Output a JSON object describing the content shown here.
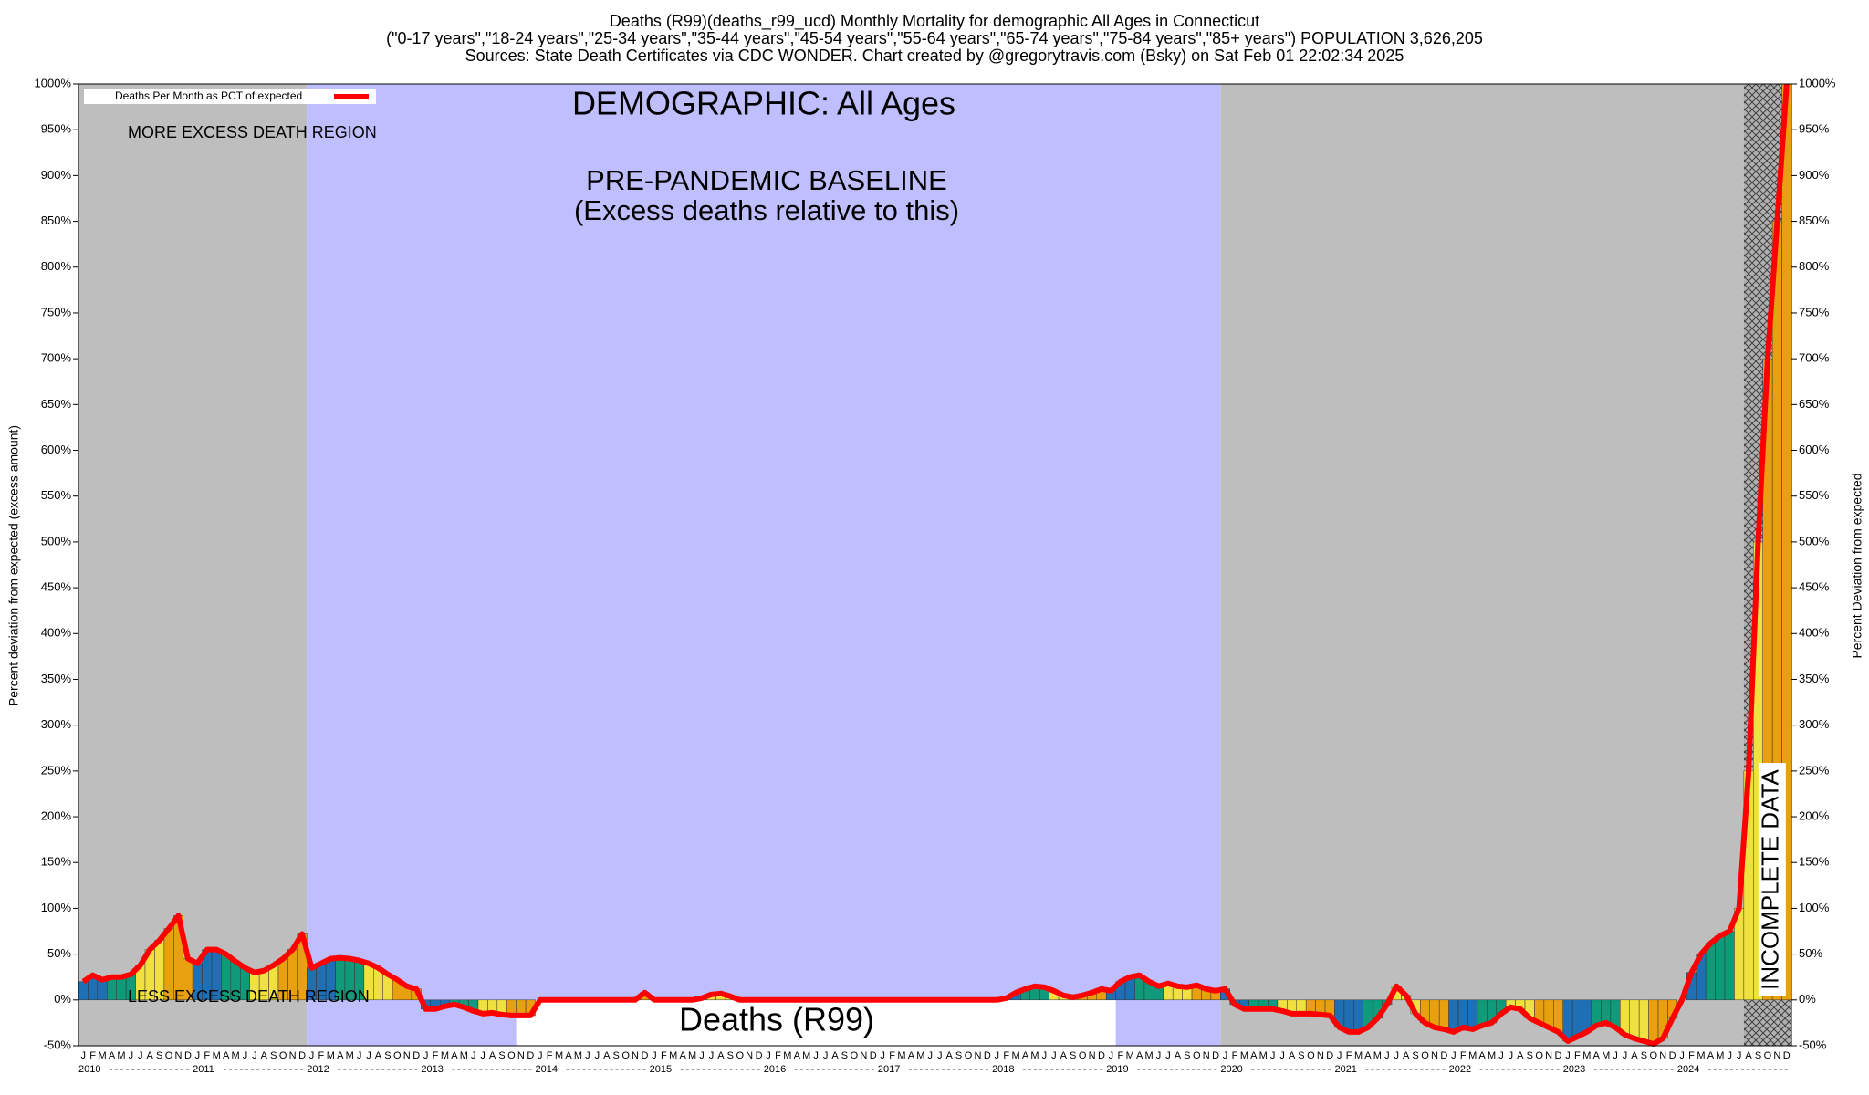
{
  "chart_data": {
    "type": "bar",
    "title_lines": [
      "Deaths (R99)(deaths_r99_ucd) Monthly Mortality for demographic All Ages in Connecticut",
      "(\"0-17 years\",\"18-24 years\",\"25-34 years\",\"35-44 years\",\"45-54 years\",\"55-64 years\",\"65-74 years\",\"75-84 years\",\"85+ years\") POPULATION 3,626,205",
      "Sources: State Death Certificates via CDC WONDER.               Chart created by @gregorytravis.com (Bsky) on Sat Feb 01 22:02:34 2025"
    ],
    "demographic": "DEMOGRAPHIC: All Ages",
    "baseline_label": "PRE-PANDEMIC BASELINE",
    "baseline_sublabel": "(Excess deaths relative to this)",
    "more_region_label": "MORE EXCESS DEATH REGION",
    "less_region_label": "LESS EXCESS DEATH REGION",
    "cause_label": "Deaths (R99)",
    "incomplete_label": "INCOMPLETE DATA",
    "ylabel": "Percent deviation from expected (excess amount)",
    "y2label": "Percent Deviation from expected",
    "categories": [
      "J",
      "F",
      "M",
      "A",
      "M",
      "J",
      "J",
      "A",
      "S",
      "O",
      "N",
      "D",
      "J",
      "F",
      "M",
      "A",
      "M",
      "J",
      "J",
      "A",
      "S",
      "O",
      "N",
      "D",
      "J",
      "F",
      "M",
      "A",
      "M",
      "J",
      "J",
      "A",
      "S",
      "O",
      "N",
      "D",
      "J",
      "F",
      "M",
      "A",
      "M",
      "J",
      "J",
      "A",
      "S",
      "O",
      "N",
      "D",
      "J",
      "F",
      "M",
      "A",
      "M",
      "J",
      "J",
      "A",
      "S",
      "O",
      "N",
      "D",
      "J",
      "F",
      "M",
      "A",
      "M",
      "J",
      "J",
      "A",
      "S",
      "O",
      "N",
      "D",
      "J",
      "F",
      "M",
      "A",
      "M",
      "J",
      "J",
      "A",
      "S",
      "O",
      "N",
      "D",
      "J",
      "F",
      "M",
      "A",
      "M",
      "J",
      "J",
      "A",
      "S",
      "O",
      "N",
      "D",
      "J",
      "F",
      "M",
      "A",
      "M",
      "J",
      "J",
      "A",
      "S",
      "O",
      "N",
      "D",
      "J",
      "F",
      "M",
      "A",
      "M",
      "J",
      "J",
      "A",
      "S",
      "O",
      "N",
      "D",
      "J",
      "F",
      "M",
      "A",
      "M",
      "J",
      "J",
      "A",
      "S",
      "O",
      "N",
      "D",
      "J",
      "F",
      "M",
      "A",
      "M",
      "J",
      "J",
      "A",
      "S",
      "O",
      "N",
      "D",
      "J",
      "F",
      "M",
      "A",
      "M",
      "J",
      "J",
      "A",
      "S",
      "O",
      "N",
      "D",
      "J",
      "F",
      "M",
      "A",
      "M",
      "J",
      "J",
      "A",
      "S",
      "O",
      "N",
      "D",
      "J",
      "F",
      "M",
      "A",
      "M",
      "J",
      "J",
      "A",
      "S",
      "O",
      "N",
      "D"
    ],
    "years": [
      "2010",
      "2011",
      "2012",
      "2013",
      "2014",
      "2015",
      "2016",
      "2017",
      "2018",
      "2019",
      "2020",
      "2021",
      "2022",
      "2023",
      "2024"
    ],
    "series": [
      {
        "name": "Deaths Per Month as PCT of expected",
        "color": "#ff0000",
        "values": [
          20,
          27,
          22,
          25,
          25,
          28,
          38,
          55,
          65,
          78,
          92,
          45,
          40,
          55,
          55,
          50,
          42,
          35,
          30,
          32,
          38,
          45,
          55,
          72,
          35,
          40,
          45,
          46,
          45,
          43,
          40,
          35,
          28,
          22,
          15,
          12,
          -10,
          -10,
          -7,
          -5,
          -8,
          -12,
          -15,
          -14,
          -16,
          -17,
          -17,
          -17,
          0,
          0,
          0,
          0,
          0,
          0,
          0,
          0,
          0,
          0,
          0,
          8,
          0,
          0,
          0,
          0,
          0,
          2,
          6,
          7,
          4,
          0,
          0,
          0,
          0,
          0,
          0,
          0,
          0,
          0,
          0,
          0,
          0,
          0,
          0,
          0,
          0,
          0,
          0,
          0,
          0,
          0,
          0,
          0,
          0,
          0,
          0,
          0,
          0,
          2,
          8,
          12,
          15,
          14,
          10,
          5,
          3,
          5,
          8,
          12,
          10,
          20,
          25,
          27,
          20,
          15,
          18,
          15,
          14,
          16,
          12,
          10,
          12,
          -5,
          -10,
          -10,
          -10,
          -10,
          -12,
          -15,
          -15,
          -15,
          -16,
          -17,
          -30,
          -35,
          -35,
          -30,
          -20,
          -5,
          15,
          5,
          -15,
          -25,
          -30,
          -32,
          -35,
          -30,
          -32,
          -28,
          -25,
          -15,
          -8,
          -10,
          -20,
          -25,
          -30,
          -35,
          -45,
          -40,
          -35,
          -28,
          -25,
          -30,
          -38,
          -42,
          -45,
          -48,
          -42,
          -20,
          0,
          30,
          50,
          62,
          70,
          75,
          100,
          250,
          500,
          700,
          850,
          1000
        ]
      }
    ],
    "bar_colors": [
      "#1f6fb4",
      "#0f9a7a",
      "#f0e040",
      "#e8a010"
    ],
    "ylim": [
      -50,
      1000
    ],
    "yticks": [
      {
        "value": -50,
        "label": "-50%"
      },
      {
        "value": 0,
        "label": "0%"
      },
      {
        "value": 50,
        "label": "50%"
      },
      {
        "value": 100,
        "label": "100%"
      },
      {
        "value": 150,
        "label": "150%"
      },
      {
        "value": 200,
        "label": "200%"
      },
      {
        "value": 250,
        "label": "250%"
      },
      {
        "value": 300,
        "label": "300%"
      },
      {
        "value": 350,
        "label": "350%"
      },
      {
        "value": 400,
        "label": "400%"
      },
      {
        "value": 450,
        "label": "450%"
      },
      {
        "value": 500,
        "label": "500%"
      },
      {
        "value": 550,
        "label": "550%"
      },
      {
        "value": 600,
        "label": "600%"
      },
      {
        "value": 650,
        "label": "650%"
      },
      {
        "value": 700,
        "label": "700%"
      },
      {
        "value": 750,
        "label": "750%"
      },
      {
        "value": 800,
        "label": "800%"
      },
      {
        "value": 850,
        "label": "850%"
      },
      {
        "value": 900,
        "label": "900%"
      },
      {
        "value": 950,
        "label": "950%"
      },
      {
        "value": 1000,
        "label": "1000%"
      }
    ]
  }
}
